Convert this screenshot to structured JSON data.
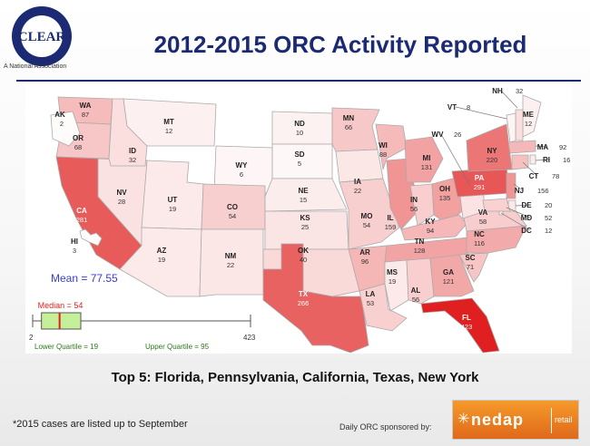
{
  "header": {
    "title": "2012-2015 ORC Activity Reported",
    "logo_text": "CLEAR",
    "logo_ring_text": "Coalition of Law Enforcement and Retail",
    "logo_subtitle": "A National Association"
  },
  "colors": {
    "title": "#1b2a73",
    "highest": "#e02020",
    "box_fill": "#c6ef9a",
    "median_line": "#e02020",
    "mean_text": "#3a3ad8",
    "sponsor_bg": "#f0861f"
  },
  "map": {
    "states": [
      {
        "abbr": "WA",
        "value": 87
      },
      {
        "abbr": "OR",
        "value": 68
      },
      {
        "abbr": "CA",
        "value": 281
      },
      {
        "abbr": "NV",
        "value": 28
      },
      {
        "abbr": "ID",
        "value": 32
      },
      {
        "abbr": "MT",
        "value": 12
      },
      {
        "abbr": "WY",
        "value": 6
      },
      {
        "abbr": "UT",
        "value": 19
      },
      {
        "abbr": "AZ",
        "value": 19
      },
      {
        "abbr": "CO",
        "value": 54
      },
      {
        "abbr": "NM",
        "value": 22
      },
      {
        "abbr": "ND",
        "value": 10
      },
      {
        "abbr": "SD",
        "value": 5
      },
      {
        "abbr": "NE",
        "value": 15
      },
      {
        "abbr": "KS",
        "value": 25
      },
      {
        "abbr": "OK",
        "value": 40
      },
      {
        "abbr": "TX",
        "value": 266
      },
      {
        "abbr": "MN",
        "value": 66
      },
      {
        "abbr": "IA",
        "value": 22
      },
      {
        "abbr": "MO",
        "value": 54
      },
      {
        "abbr": "AR",
        "value": 96
      },
      {
        "abbr": "LA",
        "value": 53
      },
      {
        "abbr": "WI",
        "value": 88
      },
      {
        "abbr": "IL",
        "value": 159
      },
      {
        "abbr": "MI",
        "value": 131
      },
      {
        "abbr": "IN",
        "value": 56
      },
      {
        "abbr": "OH",
        "value": 135
      },
      {
        "abbr": "KY",
        "value": 94
      },
      {
        "abbr": "TN",
        "value": 128
      },
      {
        "abbr": "MS",
        "value": 19
      },
      {
        "abbr": "AL",
        "value": 56
      },
      {
        "abbr": "GA",
        "value": 121
      },
      {
        "abbr": "FL",
        "value": 423
      },
      {
        "abbr": "SC",
        "value": 71
      },
      {
        "abbr": "NC",
        "value": 116
      },
      {
        "abbr": "VA",
        "value": 58
      },
      {
        "abbr": "WV",
        "value": 26
      },
      {
        "abbr": "PA",
        "value": 291
      },
      {
        "abbr": "NY",
        "value": 220
      },
      {
        "abbr": "AK",
        "value": 2
      },
      {
        "abbr": "HI",
        "value": 3
      },
      {
        "abbr": "ME",
        "value": 12
      },
      {
        "abbr": "NH",
        "value": 32
      },
      {
        "abbr": "VT",
        "value": 8
      },
      {
        "abbr": "MA",
        "value": 92
      },
      {
        "abbr": "RI",
        "value": 16
      },
      {
        "abbr": "CT",
        "value": 78
      },
      {
        "abbr": "NJ",
        "value": 156
      },
      {
        "abbr": "DE",
        "value": 20
      },
      {
        "abbr": "MD",
        "value": 52
      },
      {
        "abbr": "DC",
        "value": 12
      }
    ]
  },
  "stats": {
    "mean_label": "Mean = 77.55",
    "median_label": "Median = 54",
    "min_label": "2",
    "max_label": "423",
    "lower_quartile_label": "Lower Quartile = 19",
    "upper_quartile_label": "Upper Quartile = 95",
    "min": 2,
    "q1": 19,
    "median": 54,
    "q3": 95,
    "max": 423
  },
  "top5": "Top 5: Florida, Pennsylvania, California, Texas, New York",
  "footnote": "*2015 cases are listed up to September",
  "sponsor": {
    "label": "Daily ORC sponsored by:",
    "brand": "nedap",
    "division": "retail"
  }
}
